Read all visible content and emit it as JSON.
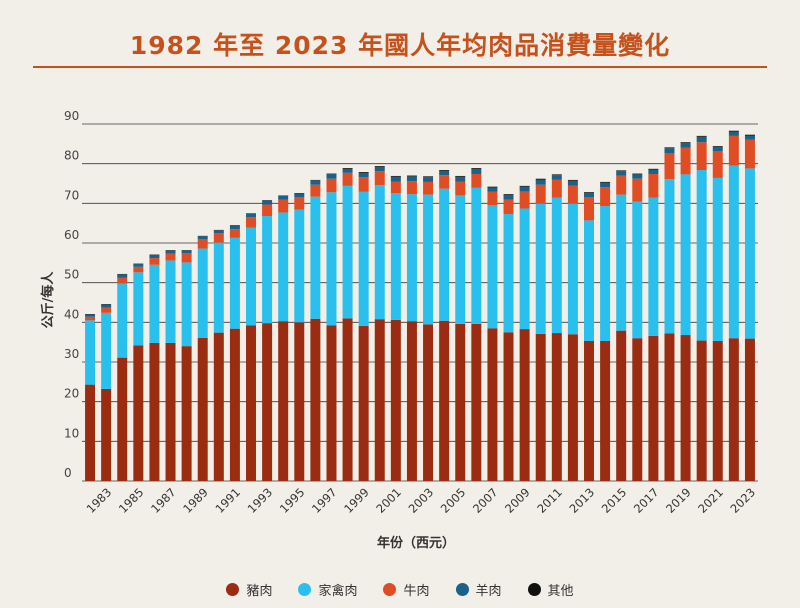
{
  "title": "1982 年至 2023 年國人年均肉品消費量變化",
  "chart_data": {
    "type": "bar",
    "stacked": true,
    "xlabel": "年份（西元）",
    "ylabel": "公斤/每人",
    "ylim": [
      0,
      90
    ],
    "yticks": [
      0,
      10,
      20,
      30,
      40,
      50,
      60,
      70,
      80,
      90
    ],
    "grid": true,
    "legend_position": "bottom",
    "years": [
      1982,
      1983,
      1984,
      1985,
      1986,
      1987,
      1988,
      1989,
      1990,
      1991,
      1992,
      1993,
      1994,
      1995,
      1996,
      1997,
      1998,
      1999,
      2000,
      2001,
      2002,
      2003,
      2004,
      2005,
      2006,
      2007,
      2008,
      2009,
      2010,
      2011,
      2012,
      2013,
      2014,
      2015,
      2016,
      2017,
      2018,
      2019,
      2020,
      2021,
      2022,
      2023
    ],
    "tick_labels": [
      "1983",
      "1985",
      "1987",
      "1989",
      "1991",
      "1993",
      "1995",
      "1997",
      "1999",
      "2001",
      "2003",
      "2005",
      "2007",
      "2009",
      "2011",
      "2013",
      "2015",
      "2017",
      "2019",
      "2021",
      "2023"
    ],
    "series": [
      {
        "name": "豬肉",
        "color": "#9b2c12",
        "values": [
          24.3,
          23.2,
          31.1,
          34.2,
          34.8,
          34.8,
          34.0,
          36.1,
          37.4,
          38.4,
          39.2,
          39.8,
          40.3,
          40.0,
          40.9,
          39.2,
          41.0,
          39.1,
          40.8,
          40.6,
          40.3,
          39.5,
          40.4,
          39.6,
          39.6,
          38.5,
          37.5,
          38.3,
          37.1,
          37.3,
          37.0,
          35.3,
          35.3,
          37.9,
          36.0,
          36.6,
          37.2,
          36.8,
          35.4,
          35.3,
          36.0,
          35.9
        ]
      },
      {
        "name": "家禽肉",
        "color": "#29c0ee",
        "values": [
          16.2,
          19.2,
          18.7,
          18.4,
          19.7,
          20.8,
          21.1,
          22.5,
          22.7,
          22.9,
          24.7,
          27.0,
          27.4,
          28.4,
          30.8,
          33.6,
          33.4,
          33.8,
          33.8,
          32.0,
          32.0,
          32.7,
          33.3,
          32.4,
          34.3,
          31.0,
          29.8,
          30.4,
          32.8,
          34.1,
          32.9,
          30.4,
          34.0,
          34.3,
          34.4,
          34.8,
          38.9,
          40.5,
          43.0,
          41.1,
          43.5,
          42.9
        ]
      },
      {
        "name": "牛肉",
        "color": "#e04d25",
        "values": [
          0.9,
          1.3,
          1.5,
          1.4,
          1.7,
          1.7,
          2.3,
          2.4,
          2.4,
          2.2,
          2.6,
          2.9,
          3.2,
          3.2,
          3.0,
          3.4,
          3.3,
          3.7,
          3.5,
          2.9,
          3.3,
          3.2,
          3.4,
          3.5,
          3.5,
          3.4,
          3.6,
          4.3,
          4.8,
          4.6,
          4.6,
          5.9,
          4.8,
          4.8,
          5.8,
          6.0,
          6.5,
          6.7,
          7.0,
          6.8,
          7.5,
          7.3
        ]
      },
      {
        "name": "羊肉",
        "color": "#1a628a",
        "values": [
          0.6,
          0.8,
          0.8,
          0.7,
          0.8,
          0.8,
          0.7,
          0.7,
          0.7,
          0.9,
          0.9,
          1.0,
          1.0,
          0.9,
          1.1,
          1.2,
          1.0,
          1.1,
          1.1,
          1.2,
          1.2,
          1.2,
          1.1,
          1.2,
          1.3,
          1.1,
          1.2,
          1.2,
          1.3,
          1.1,
          1.2,
          1.0,
          1.1,
          1.1,
          1.1,
          1.1,
          1.3,
          1.2,
          1.4,
          1.0,
          1.1,
          1.0
        ]
      },
      {
        "name": "其他",
        "color": "#111111",
        "values": [
          0.1,
          0.1,
          0.1,
          0.1,
          0.1,
          0.1,
          0.1,
          0.1,
          0.1,
          0.1,
          0.1,
          0.1,
          0.1,
          0.1,
          0.1,
          0.1,
          0.2,
          0.2,
          0.2,
          0.2,
          0.2,
          0.2,
          0.2,
          0.2,
          0.2,
          0.2,
          0.2,
          0.2,
          0.2,
          0.2,
          0.2,
          0.2,
          0.2,
          0.2,
          0.2,
          0.2,
          0.2,
          0.2,
          0.2,
          0.2,
          0.2,
          0.2
        ]
      }
    ]
  }
}
